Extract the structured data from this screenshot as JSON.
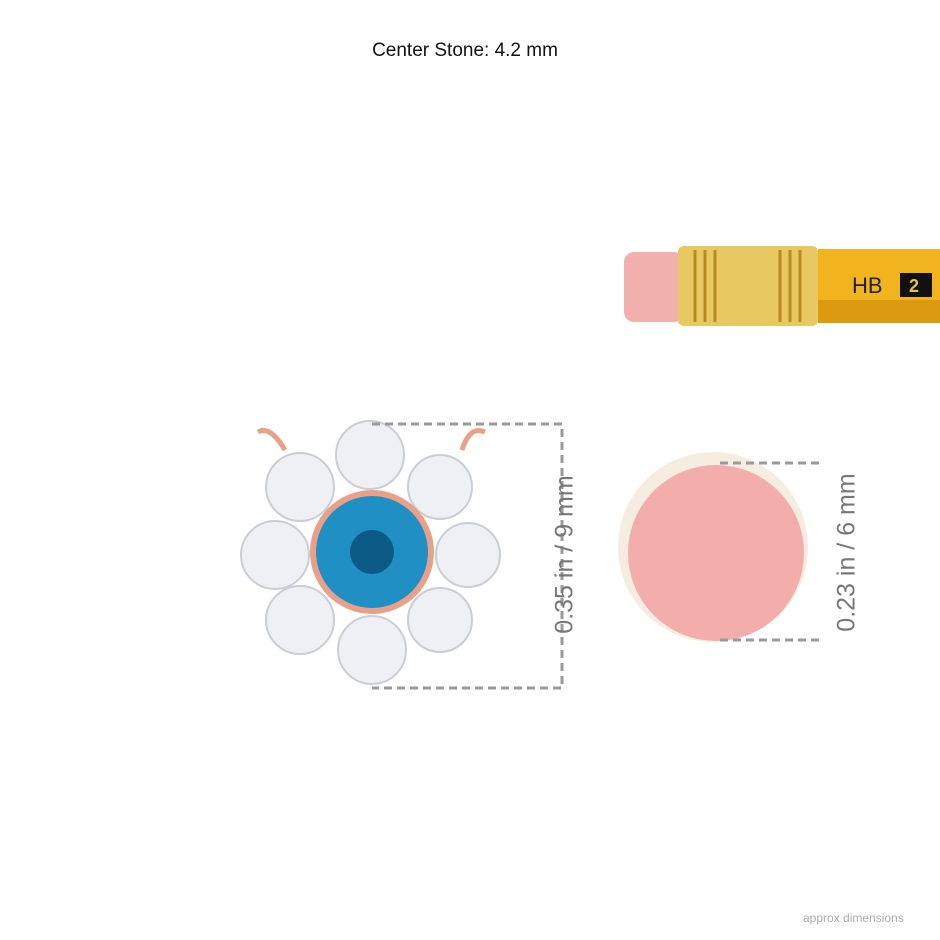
{
  "title": "Center Stone: 4.2 mm",
  "pendant_dimension": "0.35 in / 9 mm",
  "eraser_dimension": "0.23 in / 6 mm",
  "pencil": {
    "grade": "HB",
    "number": "2"
  },
  "footer": "approx dimensions",
  "colors": {
    "center_stone": "#1f8fc4",
    "metal": "#e9a088",
    "eraser": "#f2aaa8",
    "pencil": "#f1b41e",
    "dimension_line": "#9a9a9a"
  }
}
